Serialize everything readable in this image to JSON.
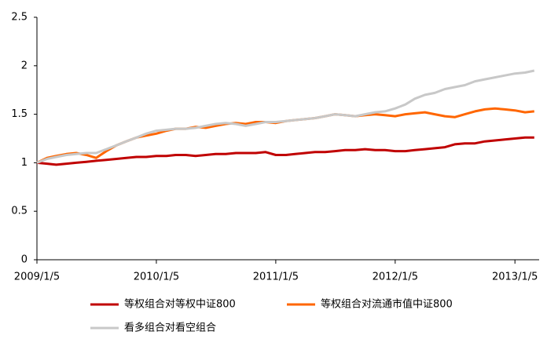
{
  "chart_data": {
    "type": "line",
    "x": [
      "2009/1/5",
      "2009/2/5",
      "2009/3/5",
      "2009/4/5",
      "2009/5/5",
      "2009/6/5",
      "2009/7/5",
      "2009/8/5",
      "2009/9/5",
      "2009/10/5",
      "2009/11/5",
      "2009/12/5",
      "2010/1/5",
      "2010/2/5",
      "2010/3/5",
      "2010/4/5",
      "2010/5/5",
      "2010/6/5",
      "2010/7/5",
      "2010/8/5",
      "2010/9/5",
      "2010/10/5",
      "2010/11/5",
      "2010/12/5",
      "2011/1/5",
      "2011/2/5",
      "2011/3/5",
      "2011/4/5",
      "2011/5/5",
      "2011/6/5",
      "2011/7/5",
      "2011/8/5",
      "2011/9/5",
      "2011/10/5",
      "2011/11/5",
      "2011/12/5",
      "2012/1/5",
      "2012/2/5",
      "2012/3/5",
      "2012/4/5",
      "2012/5/5",
      "2012/6/5",
      "2012/7/5",
      "2012/8/5",
      "2012/9/5",
      "2012/10/5",
      "2012/11/5",
      "2012/12/5",
      "2013/1/5",
      "2013/2/5",
      "2013/3/5"
    ],
    "series": [
      {
        "name": "等权组合对等权中证800",
        "color": "#c00000",
        "values": [
          1.0,
          0.99,
          0.98,
          0.99,
          1.0,
          1.01,
          1.02,
          1.03,
          1.04,
          1.05,
          1.06,
          1.06,
          1.07,
          1.07,
          1.08,
          1.08,
          1.07,
          1.08,
          1.09,
          1.09,
          1.1,
          1.1,
          1.1,
          1.11,
          1.08,
          1.08,
          1.09,
          1.1,
          1.11,
          1.11,
          1.12,
          1.13,
          1.13,
          1.14,
          1.13,
          1.13,
          1.12,
          1.12,
          1.13,
          1.14,
          1.15,
          1.16,
          1.19,
          1.2,
          1.2,
          1.22,
          1.23,
          1.24,
          1.25,
          1.26,
          1.26
        ]
      },
      {
        "name": "等权组合对流通市值中证800",
        "color": "#ff6600",
        "values": [
          1.0,
          1.05,
          1.07,
          1.09,
          1.1,
          1.08,
          1.05,
          1.12,
          1.18,
          1.22,
          1.26,
          1.28,
          1.3,
          1.33,
          1.35,
          1.35,
          1.37,
          1.36,
          1.38,
          1.4,
          1.41,
          1.4,
          1.42,
          1.42,
          1.41,
          1.43,
          1.44,
          1.45,
          1.46,
          1.48,
          1.5,
          1.49,
          1.48,
          1.49,
          1.5,
          1.49,
          1.48,
          1.5,
          1.51,
          1.52,
          1.5,
          1.48,
          1.47,
          1.5,
          1.53,
          1.55,
          1.56,
          1.55,
          1.54,
          1.52,
          1.53
        ]
      },
      {
        "name": "看多组合对看空组合",
        "color": "#c8c8c8",
        "values": [
          1.0,
          1.04,
          1.06,
          1.08,
          1.09,
          1.1,
          1.1,
          1.14,
          1.18,
          1.22,
          1.26,
          1.3,
          1.33,
          1.34,
          1.35,
          1.35,
          1.36,
          1.38,
          1.4,
          1.41,
          1.4,
          1.38,
          1.4,
          1.42,
          1.42,
          1.43,
          1.44,
          1.45,
          1.46,
          1.48,
          1.5,
          1.49,
          1.48,
          1.5,
          1.52,
          1.53,
          1.56,
          1.6,
          1.66,
          1.7,
          1.72,
          1.76,
          1.78,
          1.8,
          1.84,
          1.86,
          1.88,
          1.9,
          1.92,
          1.93,
          1.95
        ]
      }
    ],
    "xlim": [
      "2009/1/5",
      "2013/3/20"
    ],
    "xticks": [
      "2009/1/5",
      "2010/1/5",
      "2011/1/5",
      "2012/1/5",
      "2013/1/5"
    ],
    "ylim": [
      0,
      2.5
    ],
    "yticks": [
      0,
      0.5,
      1,
      1.5,
      2,
      2.5
    ]
  }
}
